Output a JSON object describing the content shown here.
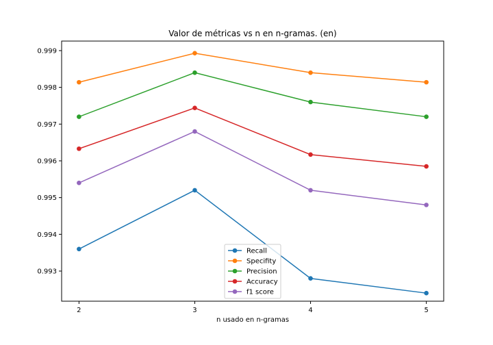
{
  "chart_data": {
    "type": "line",
    "title": "Valor de métricas vs n en n-gramas. (en)",
    "xlabel": "n usado en n-gramas",
    "ylabel": "",
    "x": [
      2,
      3,
      4,
      5
    ],
    "x_ticks": [
      "2",
      "3",
      "4",
      "5"
    ],
    "y_ticks": [
      "0.993",
      "0.994",
      "0.995",
      "0.996",
      "0.997",
      "0.998",
      "0.999"
    ],
    "y_tick_values": [
      0.993,
      0.994,
      0.995,
      0.996,
      0.997,
      0.998,
      0.999
    ],
    "xlim": [
      1.85,
      5.15
    ],
    "ylim": [
      0.99218,
      0.99926
    ],
    "grid": false,
    "legend_position": "lower center",
    "series": [
      {
        "name": "Recall",
        "color": "#1f77b4",
        "values": [
          0.9936,
          0.9952,
          0.9928,
          0.9924
        ]
      },
      {
        "name": "Specifity",
        "color": "#ff7f0e",
        "values": [
          0.99814,
          0.99893,
          0.9984,
          0.99814
        ]
      },
      {
        "name": "Precision",
        "color": "#2ca02c",
        "values": [
          0.9972,
          0.9984,
          0.9976,
          0.9972
        ]
      },
      {
        "name": "Accuracy",
        "color": "#d62728",
        "values": [
          0.99633,
          0.99744,
          0.99617,
          0.99585
        ]
      },
      {
        "name": "f1 score",
        "color": "#9467bd",
        "values": [
          0.9954,
          0.9968,
          0.9952,
          0.9948
        ]
      }
    ]
  }
}
